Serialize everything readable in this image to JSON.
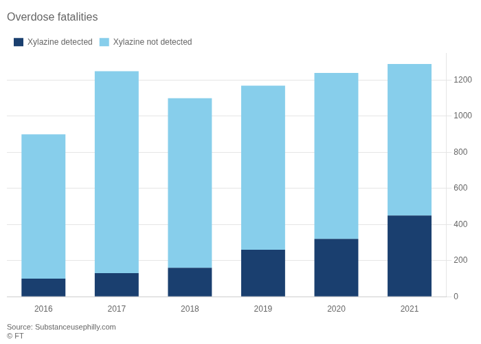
{
  "chart_data": {
    "type": "bar",
    "title": "Overdose fatalities",
    "categories": [
      "2016",
      "2017",
      "2018",
      "2019",
      "2020",
      "2021"
    ],
    "series": [
      {
        "name": "Xylazine detected",
        "color": "#1a3f6f",
        "values": [
          100,
          130,
          160,
          260,
          320,
          450
        ]
      },
      {
        "name": "Xylazine not detected",
        "color": "#87ceeb",
        "values": [
          800,
          1120,
          940,
          910,
          920,
          840
        ]
      }
    ],
    "stacked": true,
    "ylim": [
      0,
      1350
    ],
    "yticks": [
      0,
      200,
      400,
      600,
      800,
      1000,
      1200
    ],
    "grid": true,
    "legend": "upper left",
    "annotations": [
      "Source: Substanceusephilly.com",
      "© FT"
    ]
  }
}
